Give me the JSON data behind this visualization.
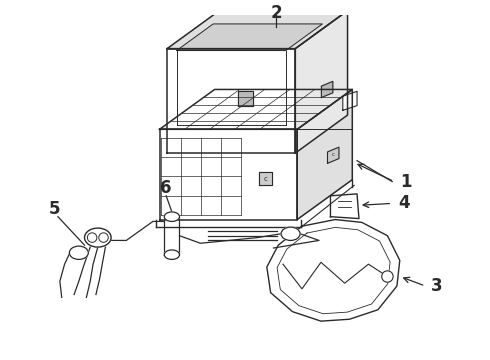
{
  "bg_color": "#ffffff",
  "line_color": "#2a2a2a",
  "label_color": "#111111",
  "label_fontsize": 12,
  "figsize": [
    4.9,
    3.6
  ],
  "dpi": 100,
  "battery_box": {
    "fx": 0.28,
    "fy": 0.3,
    "fw": 0.26,
    "fh": 0.2,
    "ox": 0.09,
    "oy": 0.065
  },
  "battery_tray": {
    "fx": 0.28,
    "fy": 0.55,
    "fw": 0.26,
    "fh": 0.2,
    "ox": 0.09,
    "oy": 0.065
  }
}
